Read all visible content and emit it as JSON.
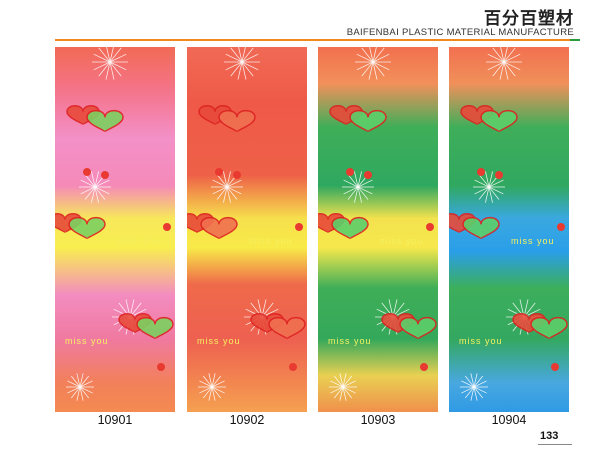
{
  "header": {
    "title": "百分百塑材",
    "subtitle": "BAIFENBAI PLASTIC MATERIAL MANUFACTURE"
  },
  "pattern_text": "miss you",
  "products": [
    {
      "code": "10901"
    },
    {
      "code": "10902"
    },
    {
      "code": "10903"
    },
    {
      "code": "10904"
    }
  ],
  "page_number": "133"
}
